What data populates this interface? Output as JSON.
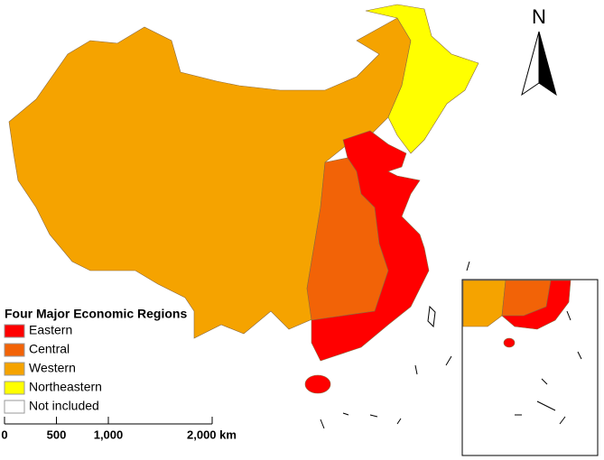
{
  "legend": {
    "title": "Four Major Economic Regions",
    "items": [
      {
        "label": "Eastern",
        "color": "#ff0000"
      },
      {
        "label": "Central",
        "color": "#f26307"
      },
      {
        "label": "Western",
        "color": "#f5a300"
      },
      {
        "label": "Northeastern",
        "color": "#ffff00"
      },
      {
        "label": "Not included",
        "color": "#ffffff"
      }
    ]
  },
  "scale_bar": {
    "ticks": [
      {
        "value": 0,
        "label": "0"
      },
      {
        "value": 500,
        "label": "500"
      },
      {
        "value": 1000,
        "label": "1,000"
      },
      {
        "value": 2000,
        "label": "2,000 km"
      }
    ]
  },
  "north_arrow": "N"
}
